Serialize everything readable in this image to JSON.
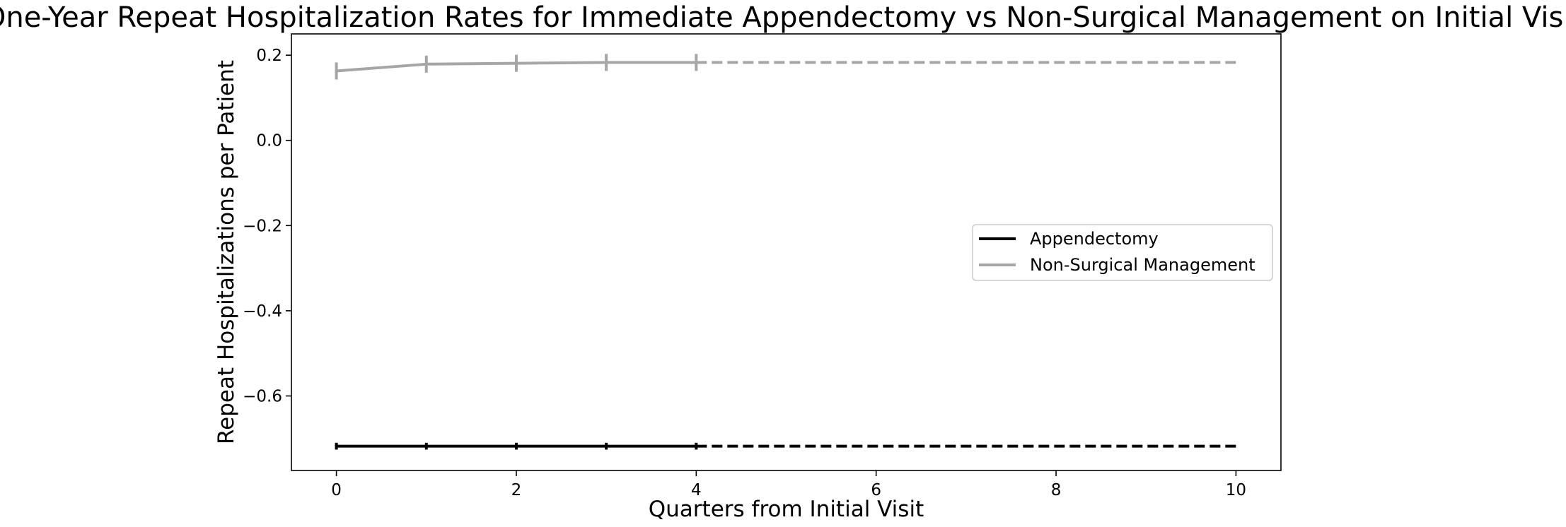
{
  "chart_data": {
    "type": "line",
    "title": "One-Year Repeat Hospitalization Rates for Immediate Appendectomy vs Non-Surgical Management on Initial Visit",
    "xlabel": "Quarters from Initial Visit",
    "ylabel": "Repeat Hospitalizations per Patient",
    "xlim": [
      -0.5,
      10.5
    ],
    "ylim": [
      -0.775,
      0.25
    ],
    "xticks": [
      0,
      2,
      4,
      6,
      8,
      10
    ],
    "yticks": [
      -0.6,
      -0.4,
      -0.2,
      0.0,
      0.2
    ],
    "xtick_labels": [
      "0",
      "2",
      "4",
      "6",
      "8",
      "10"
    ],
    "ytick_labels": [
      "−0.6",
      "−0.4",
      "−0.2",
      "0.0",
      "0.2"
    ],
    "grid": false,
    "legend_position": "center-right",
    "series": [
      {
        "name": "Appendectomy",
        "color": "#000000",
        "x": [
          0,
          1,
          2,
          3,
          4
        ],
        "y": [
          -0.718,
          -0.718,
          -0.718,
          -0.718,
          -0.718
        ],
        "error": [
          0.008,
          0.008,
          0.008,
          0.008,
          0.008
        ],
        "projection": {
          "x": [
            4,
            10
          ],
          "y": [
            -0.718,
            -0.718
          ],
          "style": "dashed"
        }
      },
      {
        "name": "Non-Surgical Management",
        "color": "#a6a6a6",
        "x": [
          0,
          1,
          2,
          3,
          4
        ],
        "y": [
          0.163,
          0.179,
          0.181,
          0.183,
          0.183
        ],
        "error": [
          0.02,
          0.02,
          0.02,
          0.02,
          0.02
        ],
        "projection": {
          "x": [
            4,
            10
          ],
          "y": [
            0.183,
            0.183
          ],
          "style": "dashed"
        }
      }
    ]
  }
}
